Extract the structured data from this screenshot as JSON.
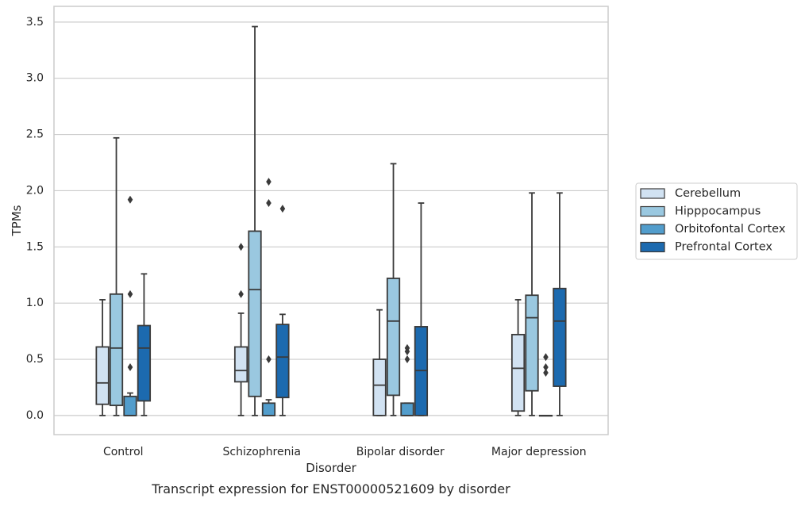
{
  "chart_data": {
    "type": "box",
    "caption": "Transcript expression for ENST00000521609 by disorder",
    "xlabel": "Disorder",
    "ylabel": "TPMs",
    "ylim": [
      -0.17,
      3.64
    ],
    "yticks": [
      "0.0",
      "0.5",
      "1.0",
      "1.5",
      "2.0",
      "2.5",
      "3.0",
      "3.5"
    ],
    "grid": "horizontal",
    "legend_position": "right",
    "categories": [
      "Control",
      "Schizophrenia",
      "Bipolar disorder",
      "Major depression"
    ],
    "series": [
      {
        "name": "Cerebellum",
        "color": "#d1e2f2",
        "boxes": [
          {
            "whisker_low": 0.0,
            "q1": 0.1,
            "median": 0.29,
            "q3": 0.61,
            "whisker_high": 1.03,
            "outliers": []
          },
          {
            "whisker_low": 0.0,
            "q1": 0.3,
            "median": 0.4,
            "q3": 0.61,
            "whisker_high": 0.91,
            "outliers": [
              1.08,
              1.5
            ]
          },
          {
            "whisker_low": 0.0,
            "q1": 0.0,
            "median": 0.27,
            "q3": 0.5,
            "whisker_high": 0.94,
            "outliers": []
          },
          {
            "whisker_low": 0.0,
            "q1": 0.04,
            "median": 0.42,
            "q3": 0.72,
            "whisker_high": 1.03,
            "outliers": []
          }
        ]
      },
      {
        "name": "Hipppocampus",
        "color": "#9ac8e0",
        "boxes": [
          {
            "whisker_low": 0.0,
            "q1": 0.09,
            "median": 0.6,
            "q3": 1.08,
            "whisker_high": 2.47,
            "outliers": []
          },
          {
            "whisker_low": 0.0,
            "q1": 0.17,
            "median": 1.12,
            "q3": 1.64,
            "whisker_high": 3.46,
            "outliers": []
          },
          {
            "whisker_low": 0.0,
            "q1": 0.18,
            "median": 0.84,
            "q3": 1.22,
            "whisker_high": 2.24,
            "outliers": []
          },
          {
            "whisker_low": 0.0,
            "q1": 0.22,
            "median": 0.87,
            "q3": 1.07,
            "whisker_high": 1.98,
            "outliers": []
          }
        ]
      },
      {
        "name": "Orbitofontal Cortex",
        "color": "#529dcc",
        "boxes": [
          {
            "whisker_low": 0.0,
            "q1": 0.0,
            "median": 0.0,
            "q3": 0.17,
            "whisker_high": 0.2,
            "outliers": [
              0.43,
              1.08,
              1.92
            ]
          },
          {
            "whisker_low": 0.0,
            "q1": 0.0,
            "median": 0.0,
            "q3": 0.11,
            "whisker_high": 0.14,
            "outliers": [
              0.5,
              1.89,
              2.08
            ]
          },
          {
            "whisker_low": 0.0,
            "q1": 0.0,
            "median": 0.0,
            "q3": 0.11,
            "whisker_high": 0.11,
            "outliers": [
              0.5,
              0.57,
              0.6
            ]
          },
          {
            "whisker_low": 0.0,
            "q1": 0.0,
            "median": 0.0,
            "q3": 0.0,
            "whisker_high": 0.0,
            "outliers": [
              0.38,
              0.43,
              0.52
            ]
          }
        ]
      },
      {
        "name": "Prefrontal Cortex",
        "color": "#1c6aaf",
        "boxes": [
          {
            "whisker_low": 0.0,
            "q1": 0.13,
            "median": 0.6,
            "q3": 0.8,
            "whisker_high": 1.26,
            "outliers": []
          },
          {
            "whisker_low": 0.0,
            "q1": 0.16,
            "median": 0.52,
            "q3": 0.81,
            "whisker_high": 0.9,
            "outliers": [
              1.84
            ]
          },
          {
            "whisker_low": 0.0,
            "q1": 0.0,
            "median": 0.4,
            "q3": 0.79,
            "whisker_high": 1.89,
            "outliers": []
          },
          {
            "whisker_low": 0.0,
            "q1": 0.26,
            "median": 0.84,
            "q3": 1.13,
            "whisker_high": 1.98,
            "outliers": []
          }
        ]
      }
    ]
  }
}
